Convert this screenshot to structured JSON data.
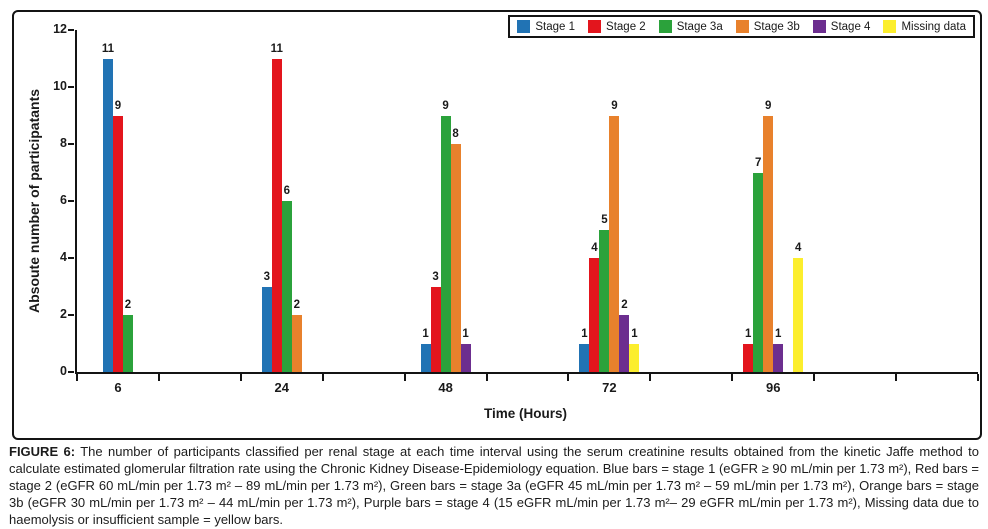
{
  "chart_data": {
    "type": "bar",
    "categories": [
      "6",
      "24",
      "48",
      "72",
      "96"
    ],
    "series": [
      {
        "name": "Stage 1",
        "color": "#2173B4",
        "values": [
          11,
          3,
          1,
          1,
          0
        ]
      },
      {
        "name": "Stage 2",
        "color": "#E3151D",
        "values": [
          9,
          11,
          3,
          4,
          1
        ]
      },
      {
        "name": "Stage 3a",
        "color": "#2BA23B",
        "values": [
          2,
          6,
          9,
          5,
          7
        ]
      },
      {
        "name": "Stage 3b",
        "color": "#E8812C",
        "values": [
          0,
          2,
          8,
          9,
          9
        ]
      },
      {
        "name": "Stage 4",
        "color": "#6C2E8F",
        "values": [
          0,
          0,
          1,
          2,
          1
        ]
      },
      {
        "name": "Missing data",
        "color": "#FCEE2D",
        "values": [
          0,
          0,
          0,
          1,
          4
        ]
      }
    ],
    "spacers": [
      {
        "category": "96",
        "insert_index": 4
      }
    ],
    "title": "",
    "xlabel": "Time (Hours)",
    "ylabel": "Absoute number of participatants",
    "ylim": [
      0,
      12
    ],
    "yticks": [
      0,
      2,
      4,
      6,
      8,
      10,
      12
    ],
    "grid": false,
    "legend_position": "top-right",
    "axis_color": "#141414"
  },
  "caption": {
    "label": "FIGURE 6:",
    "text": "The number of participants classified per renal stage at each time interval using the serum creatinine results obtained from the kinetic Jaffe method to calculate estimated glomerular filtration rate using the Chronic Kidney Disease-Epidemiology equation. Blue bars = stage 1 (eGFR ≥ 90 mL/min per 1.73 m²), Red bars = stage 2 (eGFR 60 mL/min per 1.73 m² – 89 mL/min per 1.73 m²), Green bars = stage 3a (eGFR 45 mL/min per 1.73 m² – 59 mL/min per 1.73 m²), Orange bars = stage 3b (eGFR 30 mL/min per 1.73 m² – 44 mL/min per 1.73 m²), Purple bars = stage 4 (15 eGFR mL/min per 1.73 m²– 29 eGFR mL/min per 1.73 m²), Missing data due to haemolysis or insufficient sample = yellow bars."
  }
}
